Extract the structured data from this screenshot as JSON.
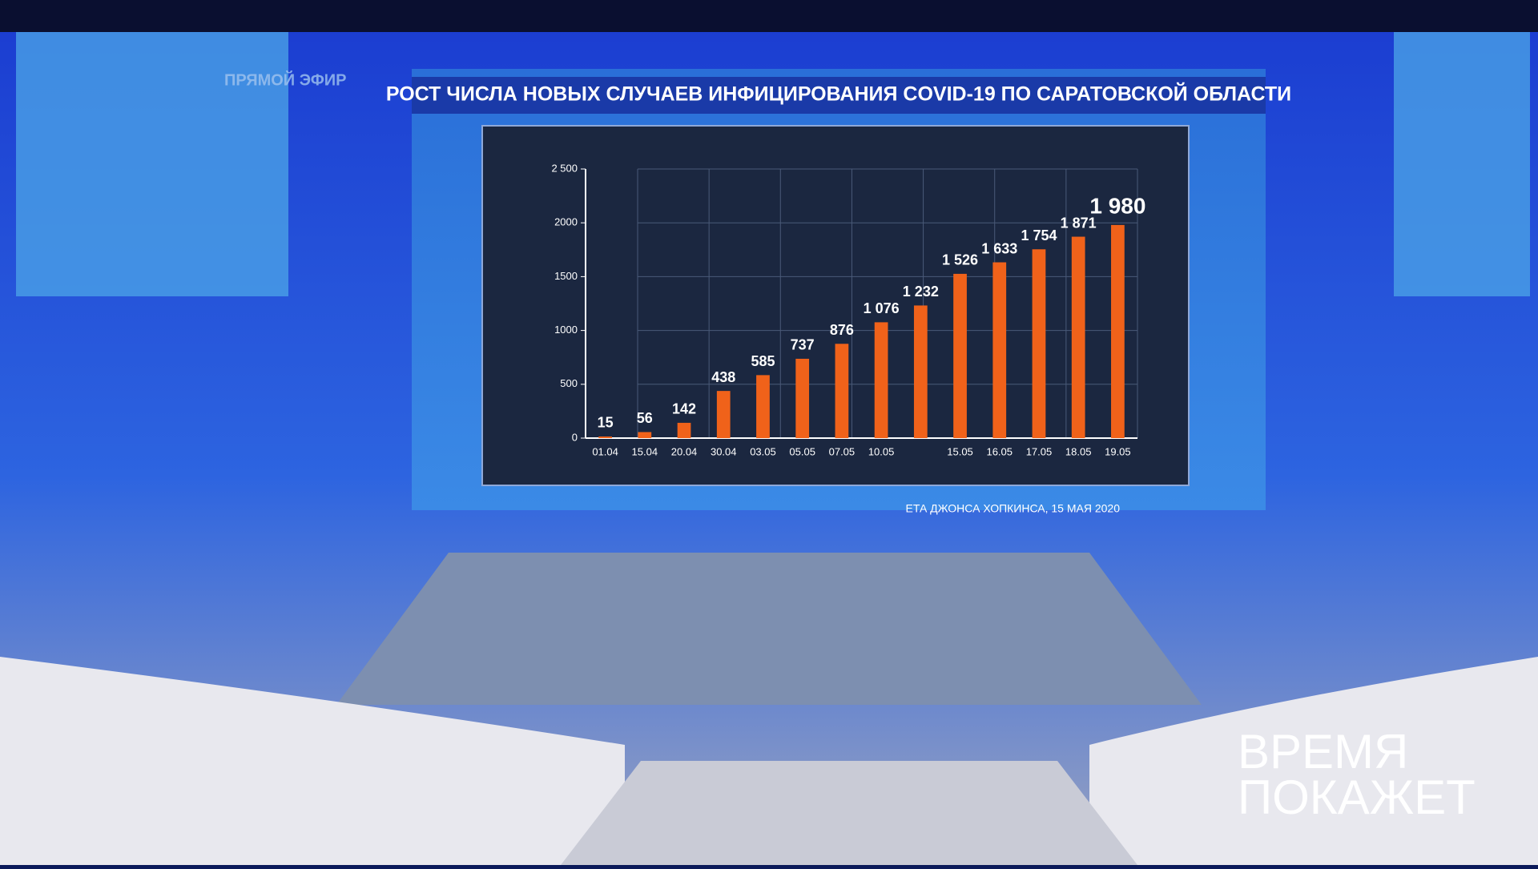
{
  "overlay": {
    "live": "ПРЯМОЙ ЭФИР",
    "show_title": [
      "ВРЕМЯ",
      "ПОКАЖЕТ"
    ]
  },
  "chart_data": {
    "type": "bar",
    "title": "РОСТ ЧИСЛА НОВЫХ СЛУЧАЕВ ИНФИЦИРОВАНИЯ COVID-19 ПО САРАТОВСКОЙ ОБЛАСТИ",
    "source": "ЕТА ДЖОНСА ХОПКИНСА, 15 МАЯ 2020",
    "categories": [
      "01.04",
      "15.04",
      "20.04",
      "30.04",
      "03.05",
      "05.05",
      "07.05",
      "10.05",
      null,
      "15.05",
      "16.05",
      "17.05",
      "18.05",
      "19.05"
    ],
    "values": [
      15,
      56,
      142,
      438,
      585,
      737,
      876,
      1076,
      1232,
      1526,
      1633,
      1754,
      1871,
      1980
    ],
    "value_labels": [
      "15",
      "56",
      "142",
      "438",
      "585",
      "737",
      "876",
      "1 076",
      "1 232",
      "1 526",
      "1 633",
      "1 754",
      "1 871",
      "1 980"
    ],
    "color": "#f0621a",
    "ylim": [
      0,
      2500
    ],
    "yticks": [
      0,
      500,
      1000,
      1500,
      2000,
      {
        "value": 2500,
        "label": "2 500"
      }
    ],
    "grid": true
  }
}
